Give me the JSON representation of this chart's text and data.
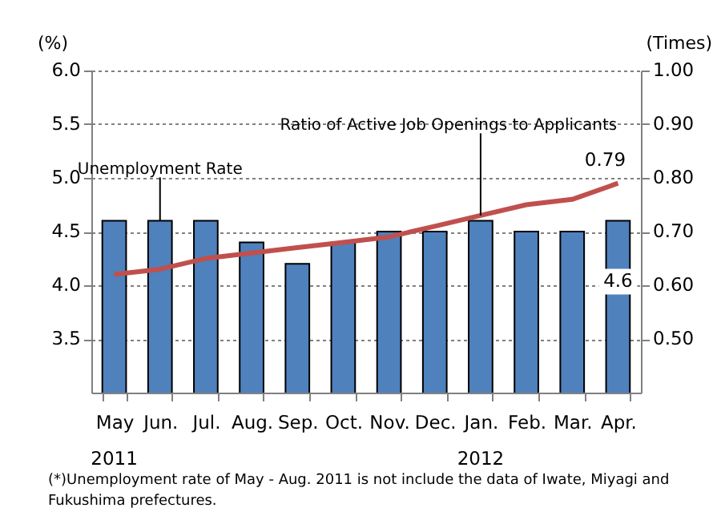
{
  "chart_data": {
    "type": "bar",
    "ylabel": "(%)",
    "y2label": "(Times)",
    "categories": [
      "May",
      "Jun.",
      "Jul.",
      "Aug.",
      "Sep.",
      "Oct.",
      "Nov.",
      "Dec.",
      "Jan.",
      "Feb.",
      "Mar.",
      "Apr."
    ],
    "series": [
      {
        "name": "Unemployment Rate",
        "color": "#4f81bd",
        "values": [
          4.6,
          4.6,
          4.6,
          4.4,
          4.2,
          4.4,
          4.5,
          4.5,
          4.6,
          4.5,
          4.5,
          4.6
        ],
        "value_labels": [
          null,
          null,
          null,
          null,
          null,
          null,
          null,
          null,
          null,
          null,
          null,
          "4.6"
        ]
      },
      {
        "name": "Ratio of Active Job Openings to Applicants",
        "type": "line",
        "axis": "y2",
        "color": "#c0504d",
        "values": [
          0.62,
          0.63,
          0.65,
          0.66,
          0.67,
          0.68,
          0.69,
          0.71,
          0.73,
          0.75,
          0.76,
          0.79
        ],
        "value_labels": [
          null,
          null,
          null,
          null,
          null,
          null,
          null,
          null,
          null,
          null,
          null,
          "0.79"
        ]
      }
    ],
    "ylim": [
      3.0,
      6.0
    ],
    "yticks": [
      3.5,
      {
        "value": 4.0,
        "label": "4.0"
      },
      4.5,
      {
        "value": 5.0,
        "label": "5.0"
      },
      5.5,
      {
        "value": 6.0,
        "label": "6.0"
      }
    ],
    "y2lim": [
      0.4,
      1.0
    ],
    "y2ticks": [
      {
        "value": 0.5,
        "label": "0.50"
      },
      {
        "value": 0.6,
        "label": "0.60"
      },
      {
        "value": 0.7,
        "label": "0.70"
      },
      {
        "value": 0.8,
        "label": "0.80"
      },
      {
        "value": 0.9,
        "label": "0.90"
      },
      {
        "value": 1.0,
        "label": "1.00"
      }
    ],
    "grid": "y",
    "annotations": [
      "2011",
      "2012",
      "(*)Unemployment rate of May - Aug. 2011 is not include the data of Iwate, Miyagi and Fukushima prefectures."
    ]
  }
}
